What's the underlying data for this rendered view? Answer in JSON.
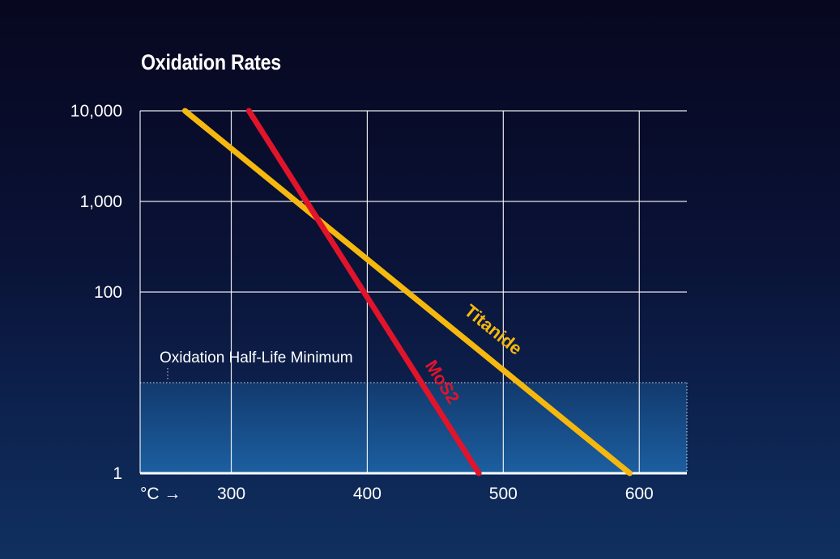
{
  "chart_data": {
    "type": "line",
    "title": "Oxidation Rates",
    "xlabel": "°C",
    "ylabel": "",
    "x_axis_marker": "°C →",
    "x_ticks": [
      300,
      400,
      500,
      600
    ],
    "x_tick_labels": [
      "300",
      "400",
      "500",
      "600"
    ],
    "xlim": [
      233,
      635
    ],
    "y_scale": "log",
    "y_ticks": [
      1,
      100,
      1000,
      10000
    ],
    "y_tick_labels": [
      "1",
      "100",
      "1,000",
      "10,000"
    ],
    "ylim": [
      1,
      10000
    ],
    "grid": true,
    "series": [
      {
        "name": "Titanide",
        "color": "#f5b80f",
        "x": [
          266,
          593
        ],
        "y": [
          10000,
          1
        ]
      },
      {
        "name": "MoS2",
        "color": "#e0142b",
        "x": [
          313,
          482
        ],
        "y": [
          10000,
          1
        ]
      }
    ],
    "annotations": [
      {
        "text": "Oxidation Half-Life Minimum",
        "type": "band",
        "y_range": [
          1,
          10
        ],
        "color": "#1c5fa0"
      }
    ]
  }
}
